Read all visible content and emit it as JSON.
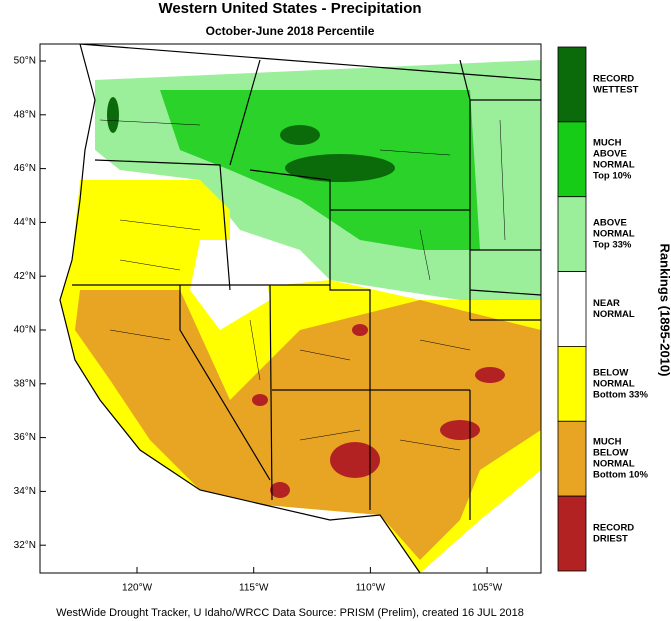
{
  "header": {
    "title": "Western United States - Precipitation",
    "subtitle": "October-June 2018 Percentile"
  },
  "axes": {
    "lat_labels": [
      "50°N",
      "48°N",
      "46°N",
      "44°N",
      "42°N",
      "40°N",
      "38°N",
      "36°N",
      "34°N",
      "32°N"
    ],
    "lon_labels": [
      "120°W",
      "115°W",
      "110°W",
      "105°W"
    ]
  },
  "legend": {
    "title": "Rankings (1895-2010)",
    "items": [
      {
        "lines": [
          "RECORD",
          "WETTEST"
        ],
        "color": "#0b6b0b"
      },
      {
        "lines": [
          "MUCH",
          "ABOVE",
          "NORMAL",
          "Top 10%"
        ],
        "color": "#16cc16"
      },
      {
        "lines": [
          "ABOVE",
          "NORMAL",
          "Top 33%"
        ],
        "color": "#9bef9b"
      },
      {
        "lines": [
          "NEAR",
          "NORMAL"
        ],
        "color": "#ffffff"
      },
      {
        "lines": [
          "BELOW",
          "NORMAL",
          "Bottom 33%"
        ],
        "color": "#ffff00"
      },
      {
        "lines": [
          "MUCH",
          "BELOW",
          "NORMAL",
          "Bottom 10%"
        ],
        "color": "#e8a524"
      },
      {
        "lines": [
          "RECORD",
          "DRIEST"
        ],
        "color": "#b22222"
      }
    ]
  },
  "footer": "WestWide Drought Tracker, U Idaho/WRCC Data Source: PRISM (Prelim), created 16 JUL 2018"
}
